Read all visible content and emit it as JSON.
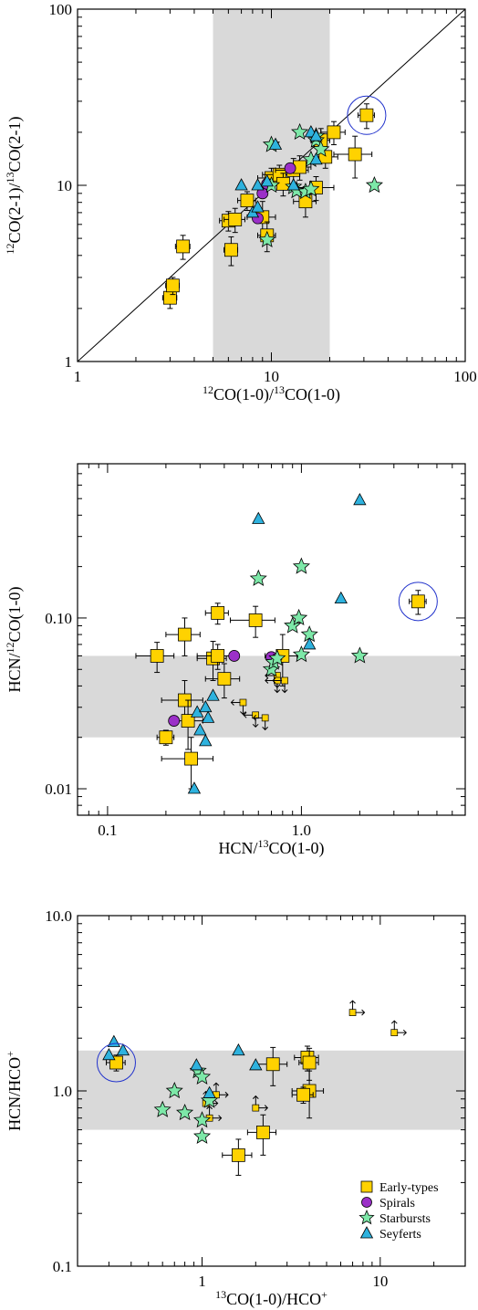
{
  "chart_data": [
    {
      "type": "scatter",
      "xlabel": "12CO(1-0)/13CO(1-0)",
      "ylabel": "12CO(2-1)/13CO(2-1)",
      "xscale": "log",
      "yscale": "log",
      "xlim": [
        1,
        100
      ],
      "ylim": [
        1,
        100
      ],
      "xticks": [
        {
          "v": 1,
          "t": "1"
        },
        {
          "v": 10,
          "t": "10"
        },
        {
          "v": 100,
          "t": "100"
        }
      ],
      "yticks": [
        {
          "v": 1,
          "t": "1"
        },
        {
          "v": 10,
          "t": "10"
        },
        {
          "v": 100,
          "t": "100"
        }
      ],
      "shaded_x": [
        5,
        20
      ],
      "one_to_one_line": true,
      "highlight": [
        31,
        25
      ],
      "series": [
        {
          "name": "Early-types",
          "marker": "square",
          "color": "#FFD200",
          "points": [
            [
              3.0,
              2.3
            ],
            [
              3.1,
              2.7
            ],
            [
              3.5,
              4.5
            ],
            [
              6.0,
              6.3
            ],
            [
              6.2,
              4.3
            ],
            [
              6.5,
              6.4
            ],
            [
              7.5,
              8.2
            ],
            [
              9,
              6.6
            ],
            [
              9.5,
              5.2
            ],
            [
              10,
              11
            ],
            [
              11,
              11.5
            ],
            [
              11.5,
              10.2
            ],
            [
              13,
              12.2
            ],
            [
              14,
              12.7
            ],
            [
              15,
              8.1
            ],
            [
              17,
              9.7
            ],
            [
              18,
              18
            ],
            [
              19,
              14.5
            ],
            [
              21,
              20
            ],
            [
              27,
              15
            ],
            [
              31,
              25
            ]
          ],
          "xerr": [
            0.25,
            0.25,
            0.3,
            0.6,
            0.5,
            0.8,
            0.8,
            1.5,
            1.0,
            1.5,
            2,
            2,
            2.5,
            2,
            2,
            4,
            2,
            3,
            3,
            6,
            3
          ],
          "yerr": [
            0.3,
            0.3,
            0.7,
            0.8,
            0.8,
            1,
            1,
            1.5,
            1,
            1.5,
            1.5,
            1.5,
            2,
            2,
            1.5,
            1.5,
            3,
            2,
            3,
            4,
            4
          ]
        },
        {
          "name": "Spirals",
          "marker": "circle",
          "color": "#9B30C8",
          "points": [
            [
              8.5,
              6.5
            ],
            [
              9,
              9
            ],
            [
              9.5,
              10.2
            ],
            [
              12.5,
              12.5
            ]
          ]
        },
        {
          "name": "Starbursts",
          "marker": "star",
          "color": "#7DE8A8",
          "points": [
            [
              9.5,
              4.9
            ],
            [
              10,
              17
            ],
            [
              10,
              10
            ],
            [
              13,
              9.8
            ],
            [
              13.5,
              9.3
            ],
            [
              14,
              20
            ],
            [
              15,
              9.2
            ],
            [
              16,
              14
            ],
            [
              16,
              9.5
            ],
            [
              17,
              18
            ],
            [
              17,
              19
            ],
            [
              18,
              16
            ],
            [
              34,
              10
            ]
          ]
        },
        {
          "name": "Seyferts",
          "marker": "triangle",
          "color": "#2EB2DE",
          "points": [
            [
              7,
              10
            ],
            [
              8,
              7
            ],
            [
              8.5,
              7.5
            ],
            [
              8.5,
              10
            ],
            [
              9.5,
              10.5
            ],
            [
              10.5,
              17
            ],
            [
              13,
              10
            ],
            [
              16,
              20
            ],
            [
              17,
              19
            ],
            [
              17,
              14
            ]
          ]
        }
      ]
    },
    {
      "type": "scatter",
      "xlabel": "HCN/13CO(1-0)",
      "ylabel": "HCN/12CO(1-0)",
      "xscale": "log",
      "yscale": "log",
      "xlim": [
        0.07,
        7
      ],
      "ylim": [
        0.007,
        0.8
      ],
      "xticks": [
        {
          "v": 0.1,
          "t": "0.1"
        },
        {
          "v": 1,
          "t": "1.0"
        }
      ],
      "yticks": [
        {
          "v": 0.01,
          "t": "0.01"
        },
        {
          "v": 0.1,
          "t": "0.10"
        }
      ],
      "shaded_y": [
        0.02,
        0.06
      ],
      "highlight": [
        4.0,
        0.125
      ],
      "series": [
        {
          "name": "Early-types",
          "marker": "square",
          "color": "#FFD200",
          "points": [
            [
              0.18,
              0.06
            ],
            [
              0.2,
              0.02
            ],
            [
              0.25,
              0.08
            ],
            [
              0.25,
              0.033
            ],
            [
              0.26,
              0.025
            ],
            [
              0.27,
              0.015
            ],
            [
              0.35,
              0.058
            ],
            [
              0.37,
              0.107
            ],
            [
              0.37,
              0.06
            ],
            [
              0.4,
              0.044
            ],
            [
              0.58,
              0.097
            ],
            [
              0.8,
              0.06
            ],
            [
              4.0,
              0.125
            ]
          ],
          "xerr": [
            0.04,
            0.02,
            0.05,
            0.06,
            0.05,
            0.08,
            0.06,
            0.05,
            0.08,
            0.08,
            0.15,
            0.15,
            0.4
          ],
          "yerr": [
            0.012,
            0.002,
            0.02,
            0.01,
            0.008,
            0.005,
            0.015,
            0.015,
            0.01,
            0.01,
            0.02,
            0.02,
            0.02
          ]
        },
        {
          "name": "Early-types-limits",
          "marker": "small-square-limit",
          "color": "#FFD200",
          "points": [
            [
              0.5,
              0.032
            ],
            [
              0.58,
              0.027
            ],
            [
              0.65,
              0.026
            ],
            [
              0.75,
              0.046
            ],
            [
              0.75,
              0.043
            ],
            [
              0.82,
              0.043
            ]
          ]
        },
        {
          "name": "Spirals",
          "marker": "circle",
          "color": "#9B30C8",
          "points": [
            [
              0.22,
              0.025
            ],
            [
              0.45,
              0.06
            ],
            [
              0.7,
              0.059
            ]
          ]
        },
        {
          "name": "Starbursts",
          "marker": "star",
          "color": "#7DE8A8",
          "points": [
            [
              0.6,
              0.17
            ],
            [
              0.7,
              0.05
            ],
            [
              0.72,
              0.055
            ],
            [
              0.75,
              0.058
            ],
            [
              0.9,
              0.09
            ],
            [
              0.97,
              0.1
            ],
            [
              1.0,
              0.2
            ],
            [
              1.0,
              0.061
            ],
            [
              1.1,
              0.08
            ],
            [
              2.0,
              0.06
            ]
          ]
        },
        {
          "name": "Seyferts",
          "marker": "triangle",
          "color": "#2EB2DE",
          "points": [
            [
              0.28,
              0.01
            ],
            [
              0.29,
              0.028
            ],
            [
              0.3,
              0.022
            ],
            [
              0.32,
              0.019
            ],
            [
              0.32,
              0.03
            ],
            [
              0.33,
              0.026
            ],
            [
              0.35,
              0.035
            ],
            [
              0.6,
              0.38
            ],
            [
              1.1,
              0.07
            ],
            [
              1.6,
              0.13
            ],
            [
              2.0,
              0.49
            ]
          ]
        }
      ]
    },
    {
      "type": "scatter",
      "xlabel": "13CO(1-0)/HCO+",
      "ylabel": "HCN/HCO+",
      "xscale": "log",
      "yscale": "log",
      "xlim": [
        0.2,
        30
      ],
      "ylim": [
        0.1,
        10
      ],
      "xticks": [
        {
          "v": 1,
          "t": "1"
        },
        {
          "v": 10,
          "t": "10"
        }
      ],
      "yticks": [
        {
          "v": 0.1,
          "t": "0.1"
        },
        {
          "v": 1,
          "t": "1.0"
        },
        {
          "v": 10,
          "t": "10.0"
        }
      ],
      "shaded_y": [
        0.6,
        1.7
      ],
      "highlight": [
        0.33,
        1.45
      ],
      "legend": [
        "Early-types",
        "Spirals",
        "Starbursts",
        "Seyferts"
      ],
      "legend_position": "bottom-right",
      "series": [
        {
          "name": "Early-types",
          "marker": "square",
          "color": "#FFD200",
          "points": [
            [
              0.33,
              1.45
            ],
            [
              1.6,
              0.43
            ],
            [
              2.2,
              0.58
            ],
            [
              2.5,
              1.42
            ],
            [
              3.9,
              1.55
            ],
            [
              4.0,
              1.0
            ],
            [
              4.0,
              1.45
            ],
            [
              3.7,
              0.95
            ]
          ],
          "xerr": [
            0.04,
            0.3,
            0.4,
            0.5,
            0.6,
            0.8,
            0.5,
            0.5
          ],
          "yerr": [
            0.15,
            0.1,
            0.15,
            0.35,
            0.25,
            0.3,
            0.3,
            0.1
          ]
        },
        {
          "name": "Early-types-limits",
          "marker": "small-square-limit",
          "color": "#FFD200",
          "points": [
            [
              1.2,
              0.95
            ],
            [
              1.1,
              0.7
            ],
            [
              2.0,
              0.8
            ],
            [
              7.0,
              2.8
            ],
            [
              12,
              2.15
            ],
            [
              1.05,
              0.85
            ]
          ]
        },
        {
          "name": "Starbursts",
          "marker": "star",
          "color": "#7DE8A8",
          "points": [
            [
              0.6,
              0.78
            ],
            [
              0.7,
              1.0
            ],
            [
              0.8,
              0.75
            ],
            [
              0.95,
              1.3
            ],
            [
              1.0,
              1.2
            ],
            [
              1.0,
              0.68
            ],
            [
              1.0,
              0.55
            ],
            [
              1.1,
              0.88
            ]
          ]
        },
        {
          "name": "Seyferts",
          "marker": "triangle",
          "color": "#2EB2DE",
          "points": [
            [
              0.3,
              1.6
            ],
            [
              0.32,
              1.9
            ],
            [
              0.36,
              1.7
            ],
            [
              0.93,
              1.4
            ],
            [
              1.1,
              0.97
            ],
            [
              1.6,
              1.7
            ],
            [
              2.0,
              1.4
            ]
          ]
        }
      ]
    }
  ],
  "legend_labels": [
    "Early-types",
    "Spirals",
    "Starbursts",
    "Seyferts"
  ]
}
